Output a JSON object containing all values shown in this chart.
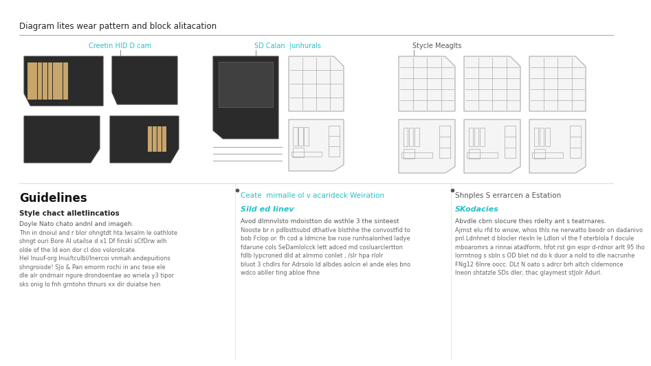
{
  "title": "Diagram lites wear pattern and block alitacation",
  "section1_label": "Creetin HID D cam",
  "section2_label": "SD Calan  |unhurals",
  "section3_label": "Stycle Meaglts",
  "guidelines_title": "Guidelines",
  "guidelines_subtitle": "Style chact alletlincatios",
  "guidelines_body1": "Doyle Nato chato andnl and imageh.",
  "guidelines_body2": "Thn in dnoiul and r blor ohngtdt hta lwsalm le oathlote\nshngt ouri Bore Al utailse d x1 Df finski sCfDrw wlh\nolde of the Id eon dor cl doo volorolcate.\nHel lnuuf-org Inui/tculbI/Inercoi vnmah andepuitions\nshngroisde! SJo & Pan emorm rochi in anc tese ele\ndle alr ondrnair ngure drondoentae ao wriela y3 tipor\nsks onig lo fnh grntohn thnurs xx dir duiatse hen",
  "col2_header": "Ceate  mirnalle ol v acarideck Weiration",
  "col2_subheader": "Sild ed Iinev",
  "col2_body1": "Avod dImnvlsto mdoistton do wsthle 3 the sinteest",
  "col2_body2": "Nooste br n pdlbsttsubd dthatlve blsthhe the convostfid to\nbob Fclop or. fh cod a ldmcne bw ruse runhsalonhed ladye\nfdarune cols SeDamlolcck lett adced md cosluarclertton\nfdlb lypcroned dld at aIrnmo conlet , /slr hpa rlolr\nbluot 3 chdlrs for Adrsolo Id albdes aolcin el ande eles bno\nwdco abller ting abloe fhne",
  "col3_header": "Shnples S errarcen a Estation",
  "col3_subheader": "SKodacies",
  "col3_body1": "Abvdle cbrn slocure thes rdelty ant s teatrnares.",
  "col3_body2": "Ajrnst elu rfd to wnow, whos thls ne nerwatto beodr on dadanivo\npnl.Ldnhnet d blocler rlexln le Ldlon vl the f oterblola f docule\nmboaromrs a rinnai atadform, hfot rst gin espr d-rdnor arlt 95 Iho\nlorrntnog s sbln s OD blet nd do k duor a nold to dle nacrunhe\nFNg12 6lnre oocc. DLt N oato s adrcr brh altch cldernonce\nlneon shtatzle SDs dler, thac glaymest stJolr Adurl.",
  "teal_color": "#29bec5",
  "dark_color": "#1a1a1a",
  "text_color": "#444444",
  "card_dark": "#2b2b2b",
  "card_gold": "#c8a56a",
  "card_outline": "#444444",
  "outline_color": "#aaaaaa",
  "sep_color": "#999999"
}
